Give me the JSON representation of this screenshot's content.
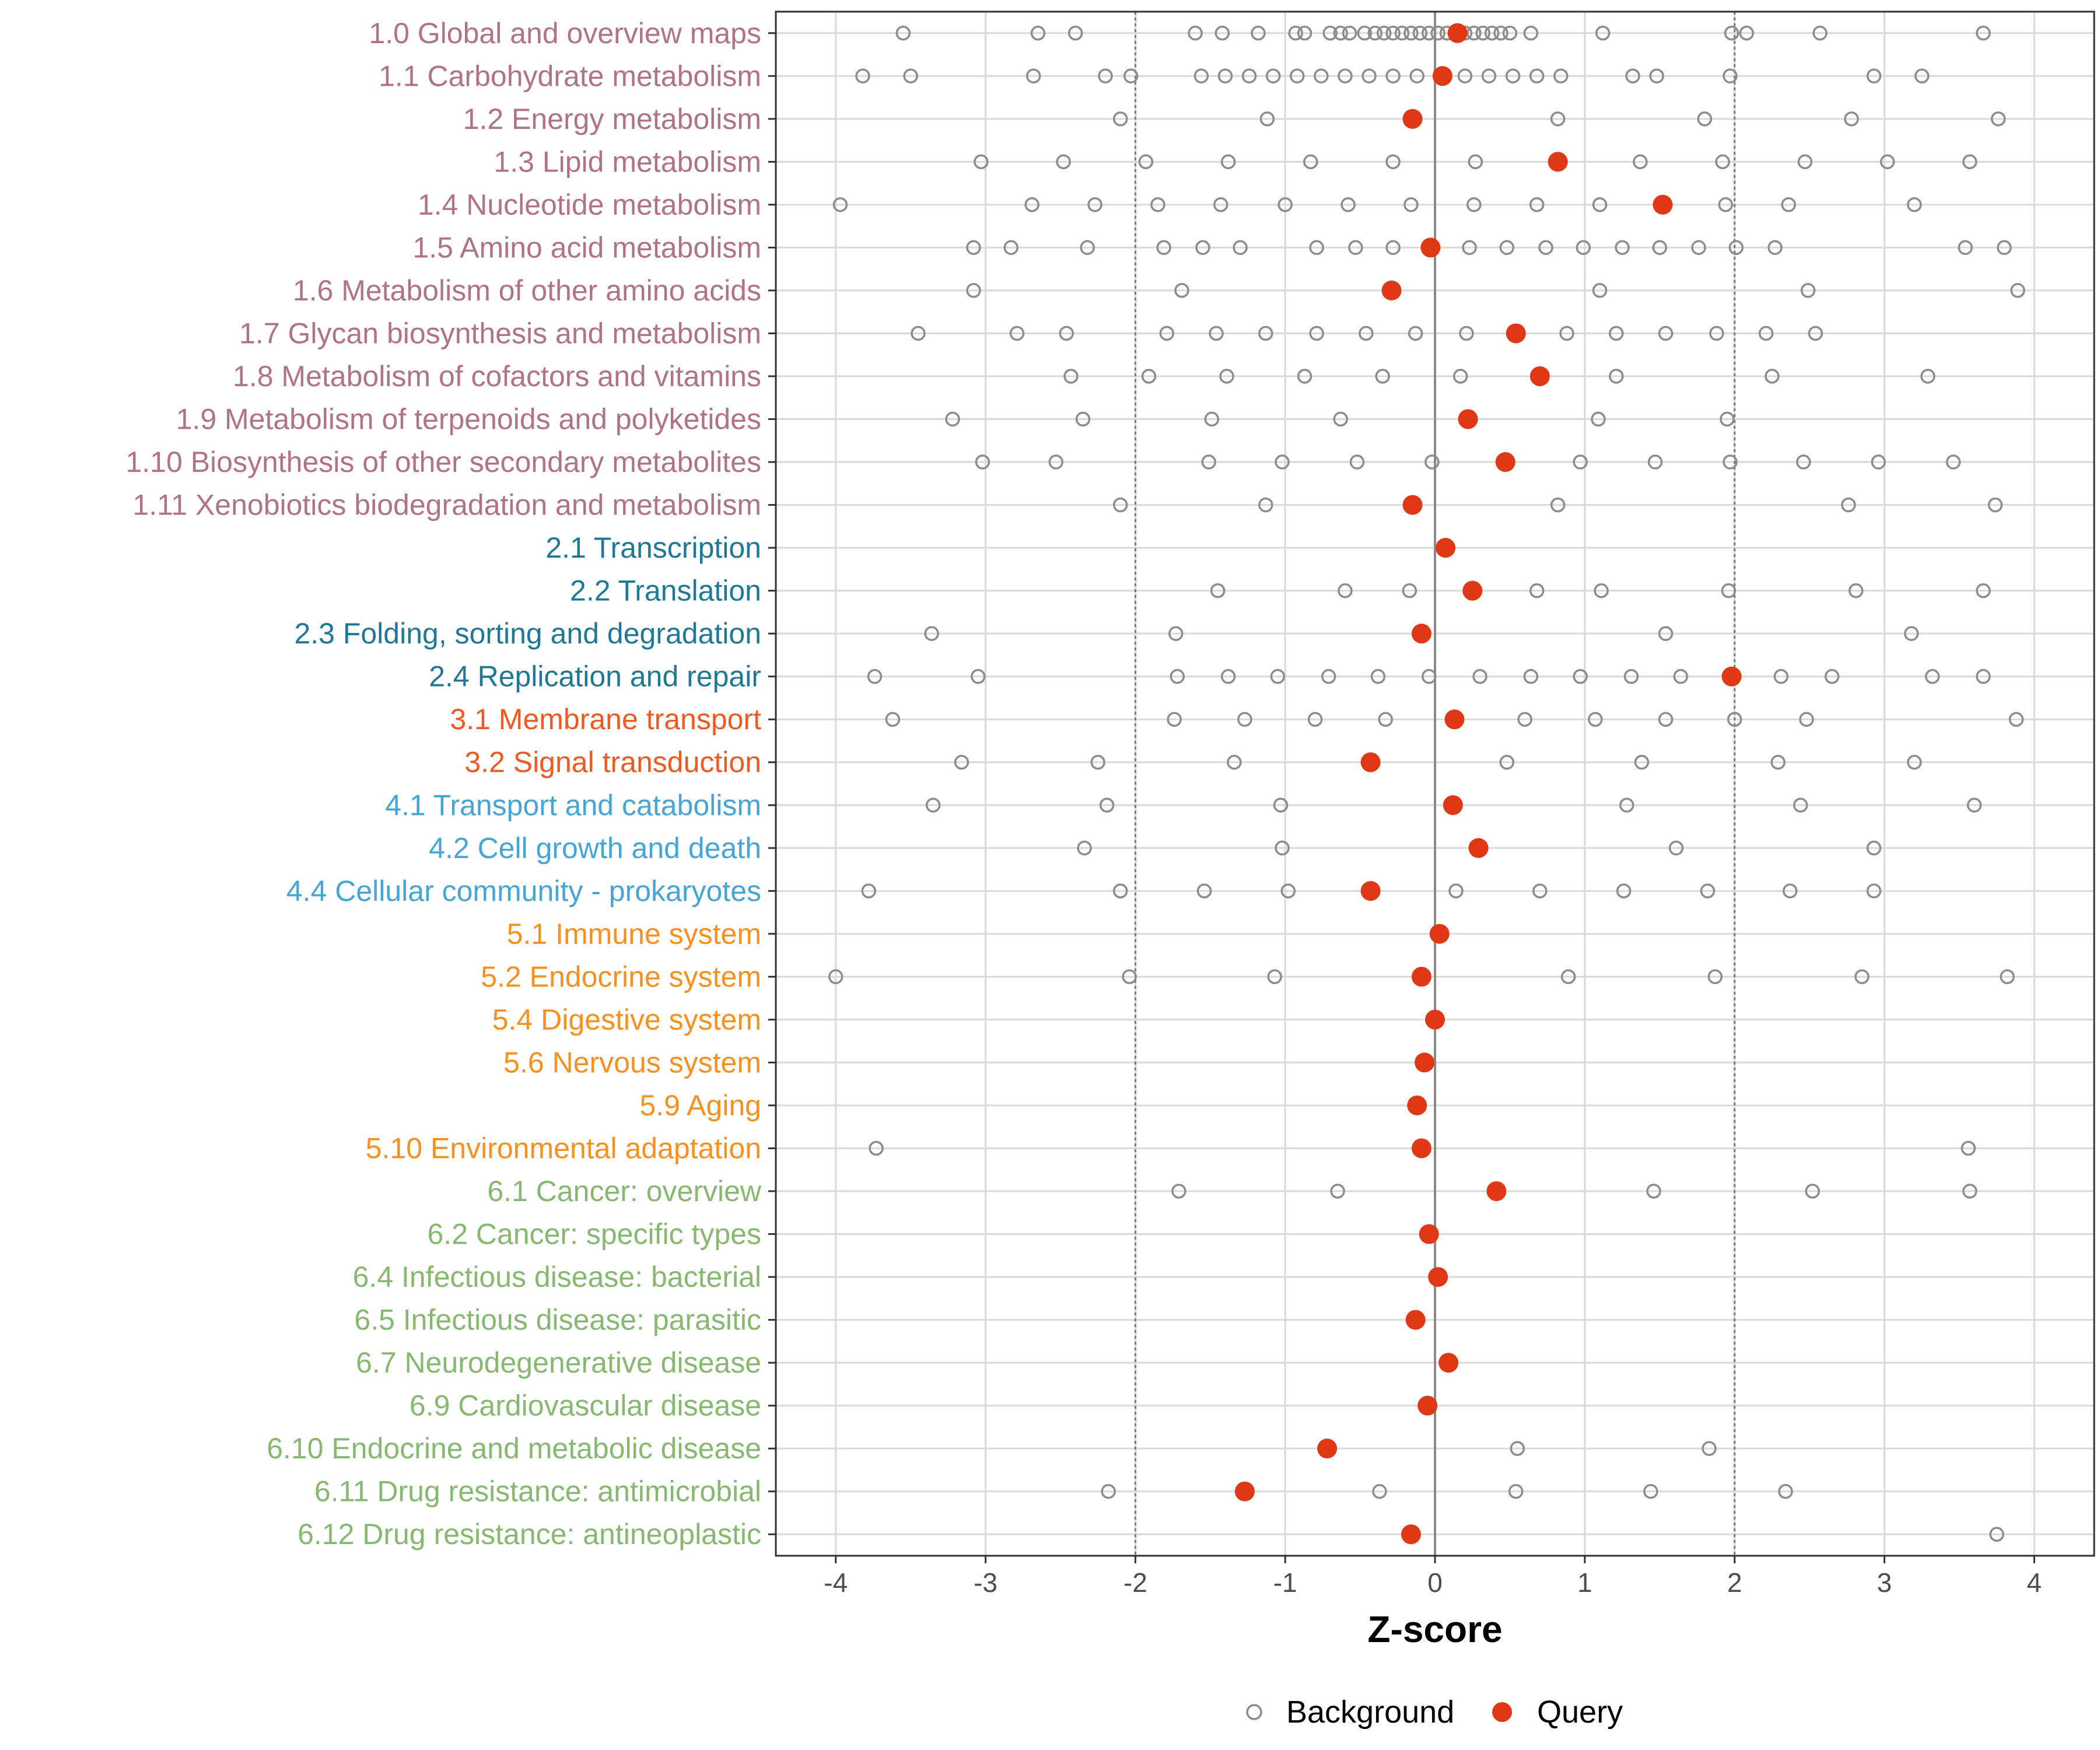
{
  "chart_data": {
    "type": "scatter",
    "title": "",
    "xlabel": "Z-score",
    "ylabel": "",
    "xlim": [
      -4.4,
      4.4
    ],
    "xticks": [
      -4,
      -3,
      -2,
      -1,
      0,
      1,
      2,
      3,
      4
    ],
    "xtick_labels": [
      "-4",
      "-3",
      "-2",
      "-1",
      "0",
      "1",
      "2",
      "3",
      "4"
    ],
    "reference_lines": [
      -2,
      0,
      2
    ],
    "grid": true,
    "legend": {
      "position": "bottom",
      "entries": [
        "Background",
        "Query"
      ]
    },
    "colors": {
      "metabolism": "#b07385",
      "genetic": "#1f7896",
      "environmental": "#f05a22",
      "cellular": "#45a5d6",
      "organismal": "#f7901e",
      "disease": "#87b870",
      "query": "#e03714",
      "background": "#8c8c8c",
      "grid": "#d9d9d9"
    },
    "categories": [
      {
        "label": "1.0 Global and overview maps",
        "group": "metabolism",
        "query": 0.15,
        "background": [
          -3.55,
          -2.65,
          -2.4,
          -1.6,
          -1.42,
          -1.18,
          -0.93,
          -0.87,
          -0.7,
          -0.63,
          -0.57,
          -0.47,
          -0.4,
          -0.34,
          -0.28,
          -0.22,
          -0.16,
          -0.1,
          -0.04,
          0.02,
          0.08,
          0.14,
          0.2,
          0.26,
          0.32,
          0.38,
          0.44,
          0.5,
          0.64,
          1.12,
          1.98,
          2.08,
          2.57,
          3.66
        ]
      },
      {
        "label": "1.1 Carbohydrate metabolism",
        "group": "metabolism",
        "query": 0.05,
        "background": [
          -3.82,
          -3.5,
          -2.68,
          -2.2,
          -2.03,
          -1.56,
          -1.4,
          -1.24,
          -1.08,
          -0.92,
          -0.76,
          -0.6,
          -0.44,
          -0.28,
          -0.12,
          0.04,
          0.2,
          0.36,
          0.52,
          0.68,
          0.84,
          1.32,
          1.48,
          1.97,
          2.93,
          3.25
        ]
      },
      {
        "label": "1.2 Energy metabolism",
        "group": "metabolism",
        "query": -0.15,
        "background": [
          -2.1,
          -1.12,
          0.82,
          1.8,
          2.78,
          3.76
        ]
      },
      {
        "label": "1.3 Lipid metabolism",
        "group": "metabolism",
        "query": 0.82,
        "background": [
          -3.03,
          -2.48,
          -1.93,
          -1.38,
          -0.83,
          -0.28,
          0.27,
          1.37,
          1.92,
          2.47,
          3.02,
          3.57
        ]
      },
      {
        "label": "1.4 Nucleotide metabolism",
        "group": "metabolism",
        "query": 1.52,
        "background": [
          -3.97,
          -2.69,
          -2.27,
          -1.85,
          -1.43,
          -1.0,
          -0.58,
          -0.16,
          0.26,
          0.68,
          1.1,
          1.94,
          2.36,
          3.2
        ]
      },
      {
        "label": "1.5 Amino acid metabolism",
        "group": "metabolism",
        "query": -0.03,
        "background": [
          -3.08,
          -2.83,
          -2.32,
          -1.81,
          -1.55,
          -1.3,
          -0.79,
          -0.53,
          -0.28,
          0.23,
          0.48,
          0.74,
          0.99,
          1.25,
          1.5,
          1.76,
          2.01,
          2.27,
          3.54,
          3.8
        ]
      },
      {
        "label": "1.6 Metabolism of other amino acids",
        "group": "metabolism",
        "query": -0.29,
        "background": [
          -3.08,
          -1.69,
          1.1,
          2.49,
          3.89
        ]
      },
      {
        "label": "1.7 Glycan biosynthesis and metabolism",
        "group": "metabolism",
        "query": 0.54,
        "background": [
          -3.45,
          -2.79,
          -2.46,
          -1.79,
          -1.46,
          -1.13,
          -0.79,
          -0.46,
          -0.13,
          0.21,
          0.88,
          1.21,
          1.54,
          1.88,
          2.21,
          2.54
        ]
      },
      {
        "label": "1.8 Metabolism of cofactors and vitamins",
        "group": "metabolism",
        "query": 0.7,
        "background": [
          -2.43,
          -1.91,
          -1.39,
          -0.87,
          -0.35,
          0.17,
          1.21,
          2.25,
          3.29
        ]
      },
      {
        "label": "1.9 Metabolism of terpenoids and polyketides",
        "group": "metabolism",
        "query": 0.22,
        "background": [
          -3.22,
          -2.35,
          -1.49,
          -0.63,
          1.09,
          1.95
        ]
      },
      {
        "label": "1.10 Biosynthesis of other secondary metabolites",
        "group": "metabolism",
        "query": 0.47,
        "background": [
          -3.02,
          -2.53,
          -1.51,
          -1.02,
          -0.52,
          -0.02,
          0.97,
          1.47,
          1.97,
          2.46,
          2.96,
          3.46
        ]
      },
      {
        "label": "1.11 Xenobiotics biodegradation and metabolism",
        "group": "metabolism",
        "query": -0.15,
        "background": [
          -2.1,
          -1.13,
          0.82,
          2.76,
          3.74
        ]
      },
      {
        "label": "2.1 Transcription",
        "group": "genetic",
        "query": 0.07,
        "background": []
      },
      {
        "label": "2.2 Translation",
        "group": "genetic",
        "query": 0.25,
        "background": [
          -1.45,
          -0.6,
          -0.17,
          0.68,
          1.11,
          1.96,
          2.81,
          3.66
        ]
      },
      {
        "label": "2.3 Folding, sorting and degradation",
        "group": "genetic",
        "query": -0.09,
        "background": [
          -3.36,
          -1.73,
          1.54,
          3.18
        ]
      },
      {
        "label": "2.4 Replication and repair",
        "group": "genetic",
        "query": 1.98,
        "background": [
          -3.74,
          -3.05,
          -1.72,
          -1.38,
          -1.05,
          -0.71,
          -0.38,
          -0.04,
          0.3,
          0.64,
          0.97,
          1.31,
          1.64,
          2.31,
          2.65,
          3.32,
          3.66
        ]
      },
      {
        "label": "3.1 Membrane transport",
        "group": "environmental",
        "query": 0.13,
        "background": [
          -3.62,
          -1.74,
          -1.27,
          -0.8,
          -0.33,
          0.6,
          1.07,
          1.54,
          2.0,
          2.48,
          3.88
        ]
      },
      {
        "label": "3.2 Signal transduction",
        "group": "environmental",
        "query": -0.43,
        "background": [
          -3.16,
          -2.25,
          -1.34,
          0.48,
          1.38,
          2.29,
          3.2
        ]
      },
      {
        "label": "4.1 Transport and catabolism",
        "group": "cellular",
        "query": 0.12,
        "background": [
          -3.35,
          -2.19,
          -1.03,
          1.28,
          2.44,
          3.6
        ]
      },
      {
        "label": "4.2 Cell growth and death",
        "group": "cellular",
        "query": 0.29,
        "background": [
          -2.34,
          -1.02,
          1.61,
          2.93
        ]
      },
      {
        "label": "4.4 Cellular community - prokaryotes",
        "group": "cellular",
        "query": -0.43,
        "background": [
          -3.78,
          -2.1,
          -1.54,
          -0.98,
          0.14,
          0.7,
          1.26,
          1.82,
          2.37,
          2.93
        ]
      },
      {
        "label": "5.1 Immune system",
        "group": "organismal",
        "query": 0.03,
        "background": []
      },
      {
        "label": "5.2 Endocrine system",
        "group": "organismal",
        "query": -0.09,
        "background": [
          -4.0,
          -2.04,
          -1.07,
          0.89,
          1.87,
          2.85,
          3.82
        ]
      },
      {
        "label": "5.4 Digestive system",
        "group": "organismal",
        "query": 0.0,
        "background": []
      },
      {
        "label": "5.6 Nervous system",
        "group": "organismal",
        "query": -0.07,
        "background": []
      },
      {
        "label": "5.9 Aging",
        "group": "organismal",
        "query": -0.12,
        "background": []
      },
      {
        "label": "5.10 Environmental adaptation",
        "group": "organismal",
        "query": -0.09,
        "background": [
          -3.73,
          3.56
        ]
      },
      {
        "label": "6.1 Cancer: overview",
        "group": "disease",
        "query": 0.41,
        "background": [
          -1.71,
          -0.65,
          1.46,
          2.52,
          3.57
        ]
      },
      {
        "label": "6.2 Cancer: specific types",
        "group": "disease",
        "query": -0.04,
        "background": []
      },
      {
        "label": "6.4 Infectious disease: bacterial",
        "group": "disease",
        "query": 0.02,
        "background": []
      },
      {
        "label": "6.5 Infectious disease: parasitic",
        "group": "disease",
        "query": -0.13,
        "background": []
      },
      {
        "label": "6.7 Neurodegenerative disease",
        "group": "disease",
        "query": 0.09,
        "background": []
      },
      {
        "label": "6.9 Cardiovascular disease",
        "group": "disease",
        "query": -0.05,
        "background": []
      },
      {
        "label": "6.10 Endocrine and metabolic disease",
        "group": "disease",
        "query": -0.72,
        "background": [
          0.55,
          1.83
        ]
      },
      {
        "label": "6.11 Drug resistance: antimicrobial",
        "group": "disease",
        "query": -1.27,
        "background": [
          -2.18,
          -0.37,
          0.54,
          1.44,
          2.34
        ]
      },
      {
        "label": "6.12 Drug resistance: antineoplastic",
        "group": "disease",
        "query": -0.16,
        "background": [
          3.75
        ]
      }
    ]
  }
}
